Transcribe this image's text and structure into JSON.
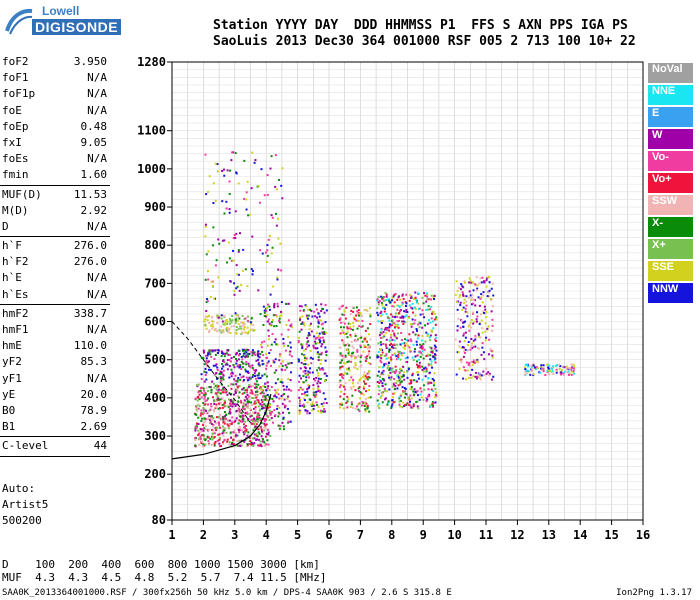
{
  "logo": {
    "line1": "Lowell",
    "line2": "DIGISONDE"
  },
  "header": {
    "line1": "Station YYYY DAY  DDD HHMMSS P1  FFS S AXN PPS IGA PS",
    "line2": "SaoLuis 2013 Dec30 364 001000 RSF 005 2 713 100 10+ 22"
  },
  "params": [
    [
      {
        "name": "foF2",
        "value": "3.950"
      },
      {
        "name": "foF1",
        "value": "N/A"
      },
      {
        "name": "foF1p",
        "value": "N/A"
      },
      {
        "name": "foE",
        "value": "N/A"
      },
      {
        "name": "foEp",
        "value": "0.48"
      },
      {
        "name": "fxI",
        "value": "9.05"
      },
      {
        "name": "foEs",
        "value": "N/A"
      },
      {
        "name": "fmin",
        "value": "1.60"
      }
    ],
    [
      {
        "name": "MUF(D)",
        "value": "11.53"
      },
      {
        "name": "M(D)",
        "value": "2.92"
      },
      {
        "name": "D",
        "value": "N/A"
      }
    ],
    [
      {
        "name": "h`F",
        "value": "276.0"
      },
      {
        "name": "h`F2",
        "value": "276.0"
      },
      {
        "name": "h`E",
        "value": "N/A"
      },
      {
        "name": "h`Es",
        "value": "N/A"
      }
    ],
    [
      {
        "name": "hmF2",
        "value": "338.7"
      },
      {
        "name": "hmF1",
        "value": "N/A"
      },
      {
        "name": "hmE",
        "value": "110.0"
      },
      {
        "name": "yF2",
        "value": "85.3"
      },
      {
        "name": "yF1",
        "value": "N/A"
      },
      {
        "name": "yE",
        "value": "20.0"
      },
      {
        "name": "B0",
        "value": "78.9"
      },
      {
        "name": "B1",
        "value": "2.69"
      }
    ],
    [
      {
        "name": "C-level",
        "value": "44"
      }
    ]
  ],
  "auto": {
    "line1": "Auto:",
    "line2": "Artist5",
    "line3": "500200"
  },
  "muf_table": {
    "line1": "D    100  200  400  600  800 1000 1500 3000 [km]",
    "line2": "MUF  4.3  4.3  4.5  4.8  5.2  5.7  7.4 11.5 [MHz]"
  },
  "footer": {
    "left": "SAA0K_2013364001000.RSF / 300fx256h 50 kHz 5.0 km / DPS-4 SAA0K 903 / 2.6 S 315.8 E",
    "right": "Ion2Png 1.3.17"
  },
  "legend": [
    {
      "label": "NoVal",
      "color": "#a0a0a0"
    },
    {
      "label": "NNE",
      "color": "#19e6f0"
    },
    {
      "label": "E",
      "color": "#3aa0f0"
    },
    {
      "label": "W",
      "color": "#a000a8"
    },
    {
      "label": "Vo-",
      "color": "#f03ca0"
    },
    {
      "label": "Vo+",
      "color": "#f0143c"
    },
    {
      "label": "SSW",
      "color": "#f0b4b4"
    },
    {
      "label": "X-",
      "color": "#0a8c0a"
    },
    {
      "label": "X+",
      "color": "#78c050"
    },
    {
      "label": "SSE",
      "color": "#d2d21e"
    },
    {
      "label": "NNW",
      "color": "#1414dc"
    }
  ],
  "chart_data": {
    "type": "scatter",
    "x_ticks": [
      1,
      2,
      3,
      4,
      5,
      6,
      7,
      8,
      9,
      10,
      11,
      12,
      13,
      14,
      15,
      16
    ],
    "y_ticks": [
      80,
      200,
      300,
      400,
      500,
      600,
      700,
      800,
      900,
      1000,
      1100,
      1280
    ],
    "xlim": [
      1,
      16
    ],
    "ylim": [
      80,
      1280
    ],
    "grid": true,
    "clusters": [
      {
        "fmin": 1.7,
        "fmax": 4.1,
        "hmin": 275,
        "hmax": 440,
        "n": 700,
        "colors": [
          "#f0143c",
          "#0a8c0a",
          "#f03ca0",
          "#a000a8",
          "#78c050",
          "#f0b4b4"
        ]
      },
      {
        "fmin": 1.9,
        "fmax": 3.8,
        "hmin": 445,
        "hmax": 530,
        "n": 220,
        "colors": [
          "#a000a8",
          "#f03ca0",
          "#1414dc",
          "#0a8c0a"
        ]
      },
      {
        "fmin": 2.0,
        "fmax": 3.6,
        "hmin": 570,
        "hmax": 620,
        "n": 110,
        "colors": [
          "#d2d21e",
          "#78c050",
          "#f0b4b4"
        ]
      },
      {
        "fmin": 3.8,
        "fmax": 4.8,
        "hmin": 320,
        "hmax": 650,
        "n": 200,
        "colors": [
          "#a000a8",
          "#0a8c0a",
          "#1414dc",
          "#d2d21e",
          "#f03ca0"
        ]
      },
      {
        "fmin": 5.0,
        "fmax": 5.9,
        "hmin": 360,
        "hmax": 650,
        "n": 260,
        "colors": [
          "#a000a8",
          "#f03ca0",
          "#d2d21e",
          "#0a8c0a",
          "#1414dc"
        ]
      },
      {
        "fmin": 6.3,
        "fmax": 7.3,
        "hmin": 365,
        "hmax": 650,
        "n": 280,
        "colors": [
          "#f0143c",
          "#f0b4b4",
          "#f03ca0",
          "#d2d21e",
          "#0a8c0a"
        ]
      },
      {
        "fmin": 7.5,
        "fmax": 9.4,
        "hmin": 375,
        "hmax": 680,
        "n": 650,
        "colors": [
          "#a000a8",
          "#f03ca0",
          "#1414dc",
          "#0a8c0a",
          "#78c050",
          "#19e6f0",
          "#d2d21e",
          "#f0143c"
        ]
      },
      {
        "fmin": 10.0,
        "fmax": 11.2,
        "hmin": 450,
        "hmax": 720,
        "n": 240,
        "colors": [
          "#f03ca0",
          "#a000a8",
          "#f0b4b4",
          "#d2d21e",
          "#1414dc"
        ]
      },
      {
        "fmin": 12.2,
        "fmax": 13.8,
        "hmin": 462,
        "hmax": 490,
        "n": 110,
        "colors": [
          "#f03ca0",
          "#19e6f0",
          "#d2d21e",
          "#f0b4b4",
          "#1414dc"
        ]
      },
      {
        "fmin": 2.0,
        "fmax": 4.5,
        "hmin": 600,
        "hmax": 1050,
        "n": 160,
        "colors": [
          "#d2d21e",
          "#f03ca0",
          "#a000a8",
          "#0a8c0a",
          "#1414dc"
        ]
      }
    ],
    "trace_solid": [
      [
        1,
        240
      ],
      [
        2,
        252
      ],
      [
        3,
        275
      ],
      [
        3.5,
        300
      ],
      [
        3.8,
        330
      ],
      [
        4.0,
        365
      ],
      [
        4.15,
        410
      ]
    ],
    "trace_dashed": [
      [
        1,
        600
      ],
      [
        1.5,
        555
      ],
      [
        2,
        500
      ],
      [
        2.5,
        445
      ],
      [
        3,
        395
      ],
      [
        3.5,
        335
      ]
    ]
  }
}
